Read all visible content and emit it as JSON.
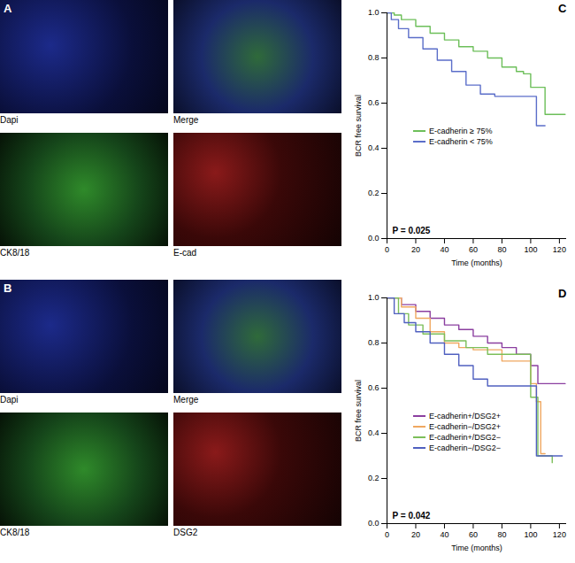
{
  "figure": {
    "panels": [
      {
        "label": "A",
        "tiles": [
          "Dapi",
          "Merge",
          "CK8/18",
          "E-cad"
        ]
      },
      {
        "label": "B",
        "tiles": [
          "Dapi",
          "Merge",
          "CK8/18",
          "DSG2"
        ]
      }
    ]
  },
  "chart_data": [
    {
      "type": "line",
      "panel": "C",
      "xlabel": "Time (months)",
      "ylabel": "BCR free survival",
      "annotation": "P = 0.025",
      "line_style": "step",
      "legend": "lower left",
      "xlim": [
        0,
        125
      ],
      "xticks": [
        0,
        20,
        40,
        60,
        80,
        100,
        120
      ],
      "ylim": [
        0,
        1
      ],
      "yticks": [
        {
          "value": 0,
          "label": "0.0"
        },
        {
          "value": 0.2,
          "label": "0.2"
        },
        {
          "value": 0.4,
          "label": "0.4"
        },
        {
          "value": 0.6,
          "label": "0.6"
        },
        {
          "value": 0.8,
          "label": "0.8"
        },
        {
          "value": 1,
          "label": "1.0"
        }
      ],
      "series": [
        {
          "name": "E-cadherin ≥ 75%",
          "color": "#6dbf5a",
          "x": [
            0,
            5,
            10,
            20,
            30,
            40,
            50,
            60,
            70,
            80,
            90,
            95,
            100,
            110,
            124
          ],
          "values": [
            1,
            0.99,
            0.97,
            0.94,
            0.91,
            0.88,
            0.85,
            0.83,
            0.8,
            0.76,
            0.74,
            0.73,
            0.67,
            0.55,
            0.55
          ]
        },
        {
          "name": "E-cadherin < 75%",
          "color": "#5b6ec9",
          "x": [
            0,
            3,
            8,
            15,
            25,
            35,
            45,
            55,
            65,
            75,
            85,
            100,
            104,
            110
          ],
          "values": [
            1,
            0.97,
            0.93,
            0.89,
            0.84,
            0.79,
            0.74,
            0.68,
            0.64,
            0.63,
            0.63,
            0.63,
            0.5,
            0.5
          ]
        }
      ]
    },
    {
      "type": "line",
      "panel": "D",
      "xlabel": "Time (months)",
      "ylabel": "BCR free survival",
      "annotation": "P = 0.042",
      "line_style": "step",
      "legend": "lower left",
      "xlim": [
        0,
        125
      ],
      "xticks": [
        0,
        20,
        40,
        60,
        80,
        100,
        120
      ],
      "ylim": [
        0,
        1
      ],
      "yticks": [
        {
          "value": 0,
          "label": "0.0"
        },
        {
          "value": 0.2,
          "label": "0.2"
        },
        {
          "value": 0.4,
          "label": "0.4"
        },
        {
          "value": 0.6,
          "label": "0.6"
        },
        {
          "value": 0.8,
          "label": "0.8"
        },
        {
          "value": 1,
          "label": "1.0"
        }
      ],
      "series": [
        {
          "name": "E-cadherin+/DSG2+",
          "color": "#8b3fa0",
          "x": [
            0,
            10,
            20,
            30,
            40,
            50,
            60,
            70,
            80,
            90,
            100,
            105,
            124
          ],
          "values": [
            1,
            0.97,
            0.94,
            0.91,
            0.88,
            0.86,
            0.83,
            0.8,
            0.78,
            0.75,
            0.7,
            0.62,
            0.62
          ]
        },
        {
          "name": "E-cadherin−/DSG2+",
          "color": "#f0a860",
          "x": [
            0,
            10,
            20,
            30,
            40,
            50,
            60,
            70,
            80,
            90,
            100,
            104,
            107,
            110
          ],
          "values": [
            1,
            0.96,
            0.91,
            0.85,
            0.8,
            0.78,
            0.77,
            0.77,
            0.72,
            0.72,
            0.62,
            0.54,
            0.31,
            0.31
          ]
        },
        {
          "name": "E-cadherin+/DSG2−",
          "color": "#7cbf5a",
          "x": [
            0,
            8,
            15,
            25,
            40,
            55,
            70,
            80,
            95,
            100,
            105,
            115
          ],
          "values": [
            1,
            0.93,
            0.88,
            0.84,
            0.81,
            0.78,
            0.75,
            0.75,
            0.75,
            0.56,
            0.3,
            0.27
          ]
        },
        {
          "name": "E-cadherin−/DSG2−",
          "color": "#5060c0",
          "x": [
            0,
            5,
            12,
            20,
            30,
            40,
            50,
            60,
            70,
            85,
            100,
            104,
            122
          ],
          "values": [
            1,
            0.93,
            0.89,
            0.85,
            0.8,
            0.75,
            0.7,
            0.64,
            0.61,
            0.61,
            0.61,
            0.3,
            0.3
          ]
        }
      ]
    }
  ]
}
